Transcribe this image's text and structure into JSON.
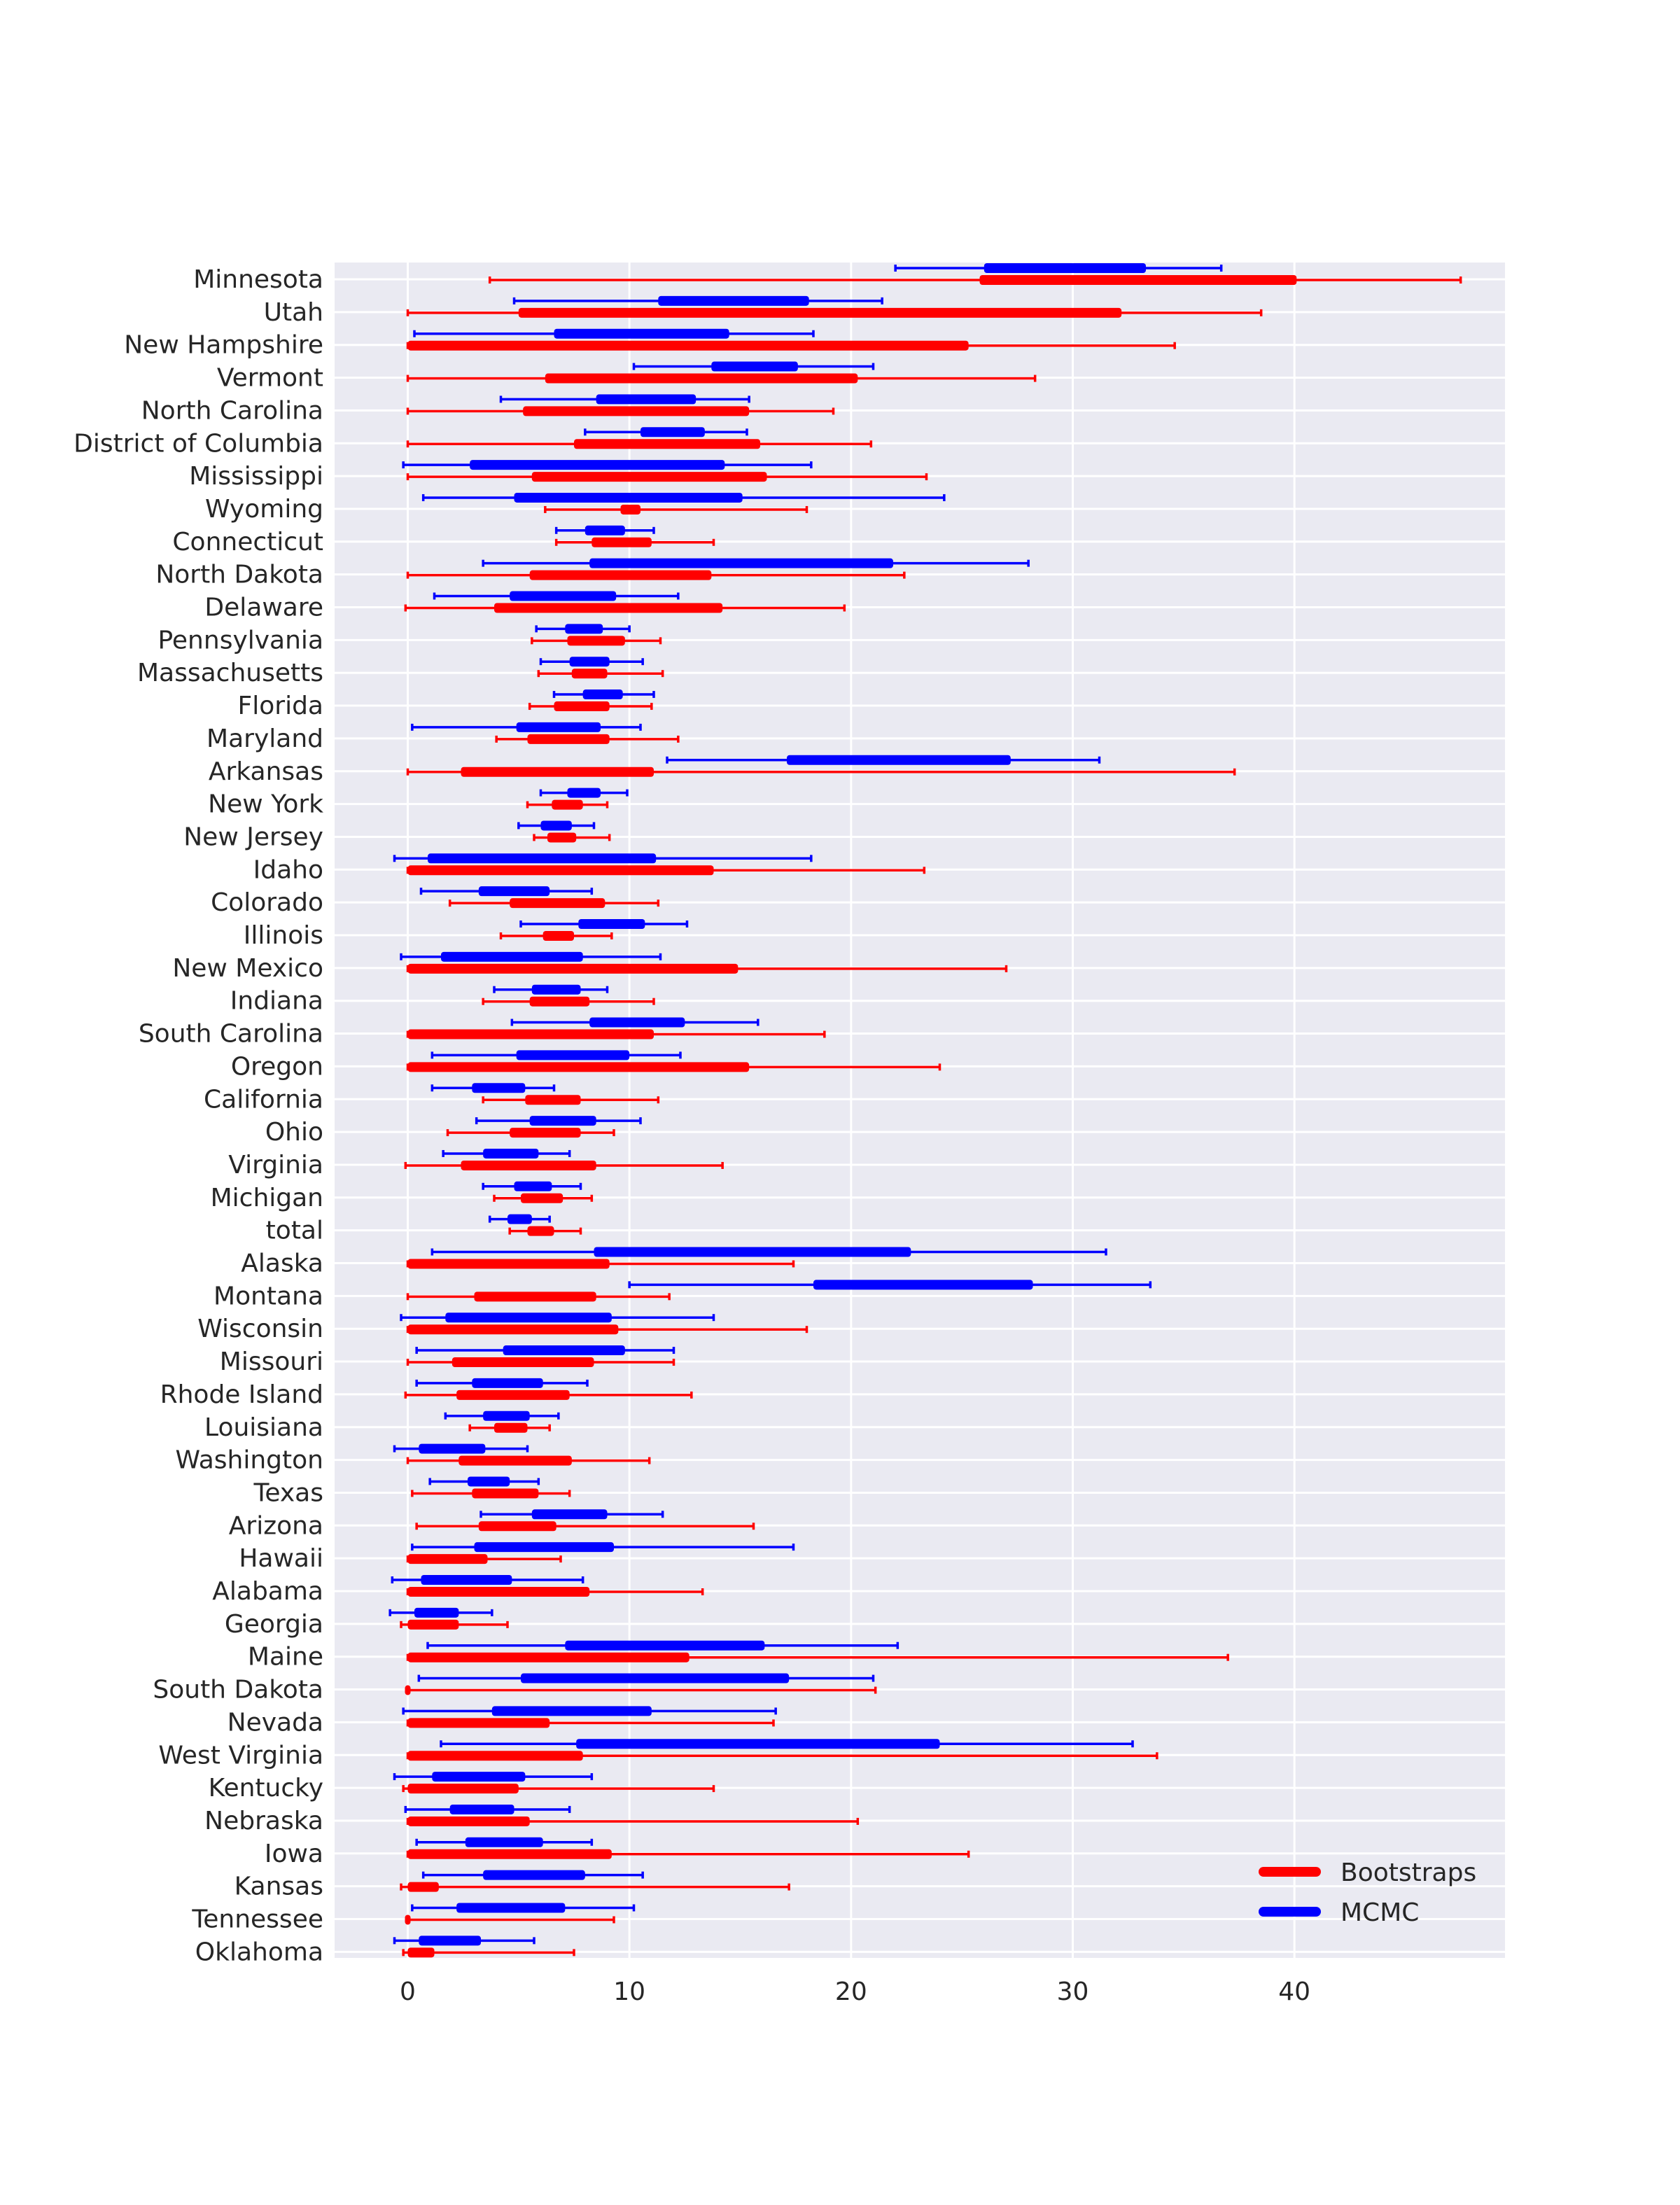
{
  "chart_data": {
    "type": "interval",
    "title": "",
    "xlabel": "",
    "ylabel": "",
    "xlim": [
      -3.3,
      49.5
    ],
    "xticks": [
      0,
      10,
      20,
      30,
      40
    ],
    "grid": true,
    "legend_position": "bottom-right",
    "series_colors": {
      "Bootstraps": "#ff0000",
      "MCMC": "#0000ff"
    },
    "series": [
      {
        "name": "Bootstraps",
        "color": "#ff0000"
      },
      {
        "name": "MCMC",
        "color": "#0000ff"
      }
    ],
    "categories": [
      "Minnesota",
      "Utah",
      "New Hampshire",
      "Vermont",
      "North Carolina",
      "District of Columbia",
      "Mississippi",
      "Wyoming",
      "Connecticut",
      "North Dakota",
      "Delaware",
      "Pennsylvania",
      "Massachusetts",
      "Florida",
      "Maryland",
      "Arkansas",
      "New York",
      "New Jersey",
      "Idaho",
      "Colorado",
      "Illinois",
      "New Mexico",
      "Indiana",
      "South Carolina",
      "Oregon",
      "California",
      "Ohio",
      "Virginia",
      "Michigan",
      "total",
      "Alaska",
      "Montana",
      "Wisconsin",
      "Missouri",
      "Rhode Island",
      "Louisiana",
      "Washington",
      "Texas",
      "Arizona",
      "Hawaii",
      "Alabama",
      "Georgia",
      "Maine",
      "South Dakota",
      "Nevada",
      "West Virginia",
      "Kentucky",
      "Nebraska",
      "Iowa",
      "Kansas",
      "Tennessee",
      "Oklahoma"
    ],
    "bootstraps": [
      [
        3.7,
        25.8,
        40.1,
        47.5
      ],
      [
        0,
        5.0,
        32.2,
        38.5
      ],
      [
        0,
        0,
        25.3,
        34.6
      ],
      [
        0,
        6.2,
        20.3,
        28.3
      ],
      [
        0,
        5.2,
        15.4,
        19.2
      ],
      [
        0,
        7.5,
        15.9,
        20.9
      ],
      [
        0,
        5.6,
        16.2,
        23.4
      ],
      [
        6.2,
        9.6,
        10.5,
        18.0
      ],
      [
        6.7,
        8.3,
        11.0,
        13.8
      ],
      [
        0,
        5.5,
        13.7,
        22.4
      ],
      [
        -0.1,
        3.9,
        14.2,
        19.7
      ],
      [
        5.6,
        7.2,
        9.8,
        11.4
      ],
      [
        5.9,
        7.4,
        9.0,
        11.5
      ],
      [
        5.5,
        6.6,
        9.1,
        11.0
      ],
      [
        4.0,
        5.4,
        9.1,
        12.2
      ],
      [
        0,
        2.4,
        11.1,
        37.3
      ],
      [
        5.4,
        6.5,
        7.9,
        9.0
      ],
      [
        5.7,
        6.3,
        7.6,
        9.1
      ],
      [
        0,
        0,
        13.8,
        23.3
      ],
      [
        1.9,
        4.6,
        8.9,
        11.3
      ],
      [
        4.2,
        6.1,
        7.5,
        9.2
      ],
      [
        0,
        0,
        14.9,
        27.0
      ],
      [
        3.4,
        5.5,
        8.2,
        11.1
      ],
      [
        0,
        0,
        11.1,
        18.8
      ],
      [
        0,
        0,
        15.4,
        24.0
      ],
      [
        3.4,
        5.3,
        7.8,
        11.3
      ],
      [
        1.8,
        4.6,
        7.8,
        9.3
      ],
      [
        -0.1,
        2.4,
        8.5,
        14.2
      ],
      [
        3.9,
        5.1,
        7.0,
        8.3
      ],
      [
        4.6,
        5.4,
        6.6,
        7.8
      ],
      [
        0,
        0,
        9.1,
        17.4
      ],
      [
        0,
        3.0,
        8.5,
        11.8
      ],
      [
        0,
        0,
        9.5,
        18.0
      ],
      [
        0,
        2.0,
        8.4,
        12.0
      ],
      [
        -0.1,
        2.2,
        7.3,
        12.8
      ],
      [
        2.8,
        3.9,
        5.4,
        6.4
      ],
      [
        0,
        2.3,
        7.4,
        10.9
      ],
      [
        0.2,
        2.9,
        5.9,
        7.3
      ],
      [
        0.4,
        3.2,
        6.7,
        15.6
      ],
      [
        0,
        0,
        3.6,
        6.9
      ],
      [
        0,
        0,
        8.2,
        13.3
      ],
      [
        -0.3,
        0,
        2.3,
        4.5
      ],
      [
        0,
        0,
        12.7,
        37.0
      ],
      [
        0,
        0,
        0,
        21.1
      ],
      [
        0,
        0,
        6.4,
        16.5
      ],
      [
        0,
        0,
        7.9,
        33.8
      ],
      [
        -0.2,
        0,
        5.0,
        13.8
      ],
      [
        0,
        0,
        5.5,
        20.3
      ],
      [
        0,
        0,
        9.2,
        25.3
      ],
      [
        -0.3,
        0,
        1.4,
        17.2
      ],
      [
        0,
        0,
        0,
        9.3
      ],
      [
        -0.2,
        0,
        1.2,
        7.5
      ]
    ],
    "mcmc": [
      [
        22.0,
        26.0,
        33.3,
        36.7
      ],
      [
        4.8,
        11.3,
        18.1,
        21.4
      ],
      [
        0.3,
        6.6,
        14.5,
        18.3
      ],
      [
        10.2,
        13.7,
        17.6,
        21.0
      ],
      [
        4.2,
        8.5,
        13.0,
        15.4
      ],
      [
        8.0,
        10.5,
        13.4,
        15.3
      ],
      [
        -0.2,
        2.8,
        14.3,
        18.2
      ],
      [
        0.7,
        4.8,
        15.1,
        24.2
      ],
      [
        6.7,
        8.0,
        9.8,
        11.1
      ],
      [
        3.4,
        8.2,
        21.9,
        28.0
      ],
      [
        1.2,
        4.6,
        9.4,
        12.2
      ],
      [
        5.8,
        7.1,
        8.8,
        10.0
      ],
      [
        6.0,
        7.3,
        9.1,
        10.6
      ],
      [
        6.6,
        7.9,
        9.7,
        11.1
      ],
      [
        0.2,
        4.9,
        8.7,
        10.5
      ],
      [
        11.7,
        17.1,
        27.2,
        31.2
      ],
      [
        6.0,
        7.2,
        8.7,
        9.9
      ],
      [
        5.0,
        6.0,
        7.4,
        8.4
      ],
      [
        -0.6,
        0.9,
        11.2,
        18.2
      ],
      [
        0.6,
        3.2,
        6.4,
        8.3
      ],
      [
        5.1,
        7.7,
        10.7,
        12.6
      ],
      [
        -0.3,
        1.5,
        7.9,
        11.4
      ],
      [
        3.9,
        5.6,
        7.8,
        9.0
      ],
      [
        4.7,
        8.2,
        12.5,
        15.8
      ],
      [
        1.1,
        4.9,
        10.0,
        12.3
      ],
      [
        1.1,
        2.9,
        5.3,
        6.6
      ],
      [
        3.1,
        5.5,
        8.5,
        10.5
      ],
      [
        1.6,
        3.4,
        5.9,
        7.3
      ],
      [
        3.4,
        4.8,
        6.5,
        7.8
      ],
      [
        3.7,
        4.5,
        5.6,
        6.4
      ],
      [
        1.1,
        8.4,
        22.7,
        31.5
      ],
      [
        10.0,
        18.3,
        28.2,
        33.5
      ],
      [
        -0.3,
        1.7,
        9.2,
        13.8
      ],
      [
        0.4,
        4.3,
        9.8,
        12.0
      ],
      [
        0.4,
        2.9,
        6.1,
        8.1
      ],
      [
        1.7,
        3.4,
        5.5,
        6.8
      ],
      [
        -0.6,
        0.5,
        3.5,
        5.4
      ],
      [
        1.0,
        2.7,
        4.6,
        5.9
      ],
      [
        3.3,
        5.6,
        9.0,
        11.5
      ],
      [
        0.2,
        3.0,
        9.3,
        17.4
      ],
      [
        -0.7,
        0.6,
        4.7,
        7.9
      ],
      [
        -0.8,
        0.3,
        2.3,
        3.8
      ],
      [
        0.9,
        7.1,
        16.1,
        22.1
      ],
      [
        0.5,
        5.1,
        17.2,
        21.0
      ],
      [
        -0.2,
        3.8,
        11.0,
        16.6
      ],
      [
        1.5,
        7.6,
        24.0,
        32.7
      ],
      [
        -0.6,
        1.1,
        5.3,
        8.3
      ],
      [
        -0.1,
        1.9,
        4.8,
        7.3
      ],
      [
        0.4,
        2.6,
        6.1,
        8.3
      ],
      [
        0.7,
        3.4,
        8.0,
        10.6
      ],
      [
        0.2,
        2.2,
        7.1,
        10.2
      ],
      [
        -0.6,
        0.5,
        3.3,
        5.7
      ]
    ]
  }
}
